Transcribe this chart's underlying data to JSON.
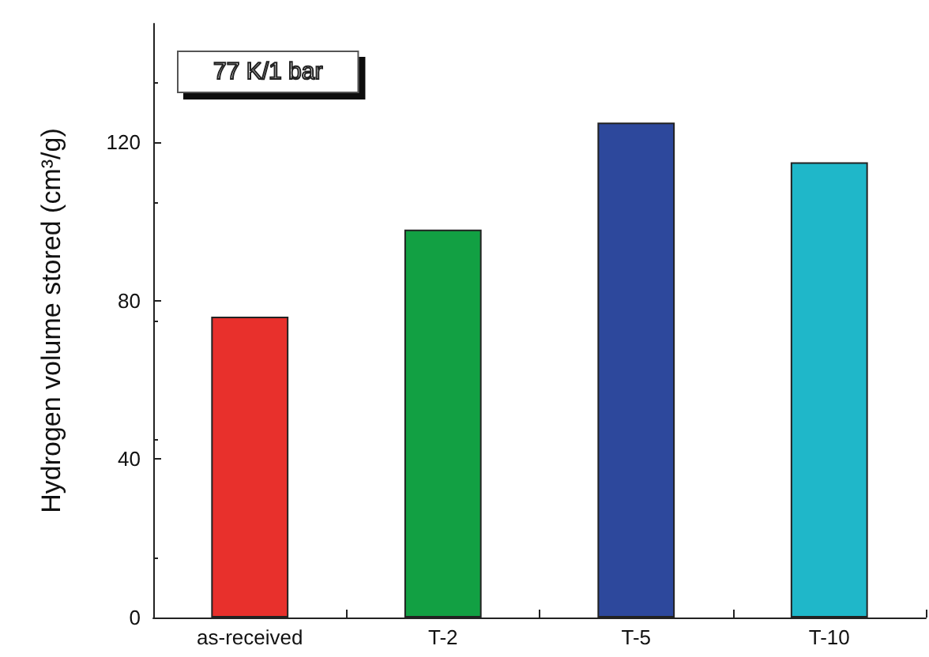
{
  "chart_data": {
    "type": "bar",
    "ylabel": "Hydrogen volume stored (cm³/g)",
    "categories": [
      "as-received",
      "T-2",
      "T-5",
      "T-10"
    ],
    "values": [
      76,
      98,
      125,
      115
    ],
    "colors": [
      "#e8302c",
      "#12a043",
      "#2d489c",
      "#1fb7c9"
    ],
    "ylim": [
      0,
      150
    ],
    "yticks": [
      0,
      40,
      80,
      120
    ],
    "grid": false,
    "annotations": [
      "77 K/1 bar"
    ]
  }
}
